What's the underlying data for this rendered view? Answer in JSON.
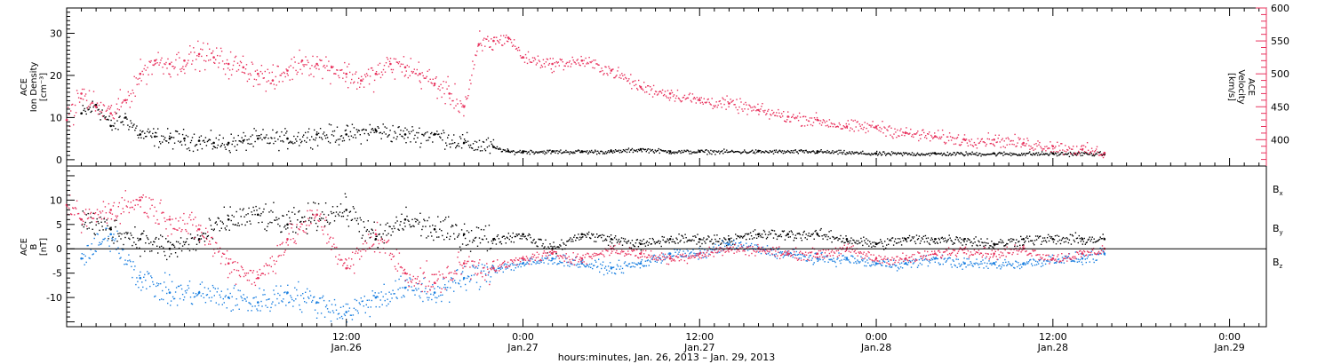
{
  "colors": {
    "density": "#000000",
    "velocity": "#e8335e",
    "bx": "#000000",
    "by": "#1a7fe0",
    "bz": "#e8335e",
    "frame": "#000000"
  },
  "xaxis": {
    "title": "hours:minutes, Jan. 26, 2013 – Jan. 29, 2013",
    "range_hours": [
      -7,
      74.5
    ],
    "data_end_hours": 63.5,
    "ticks": [
      {
        "hour": 12,
        "time": "12:00",
        "day": "Jan.26"
      },
      {
        "hour": 24,
        "time": "0:00",
        "day": "Jan.27"
      },
      {
        "hour": 36,
        "time": "12:00",
        "day": "Jan.27"
      },
      {
        "hour": 48,
        "time": "0:00",
        "day": "Jan.28"
      },
      {
        "hour": 60,
        "time": "12:00",
        "day": "Jan.28"
      },
      {
        "hour": 72,
        "time": "0:00",
        "day": "Jan.29"
      }
    ]
  },
  "chart_data": [
    {
      "type": "scatter",
      "panel": "plasma",
      "ylabel_left": [
        "ACE",
        "Ion Density",
        "[cm⁻³]"
      ],
      "ylabel_right": [
        "ACE",
        "Velocity",
        "[km/s]"
      ],
      "ylim_left": [
        -1.5,
        36
      ],
      "ylim_right": [
        360,
        600
      ],
      "yticks_left": [
        0,
        10,
        20,
        30
      ],
      "yticks_right": [
        400,
        450,
        500,
        550,
        600
      ],
      "series": [
        {
          "axis": "left",
          "x_hours": [
            -6,
            -5,
            -4,
            -3,
            -2,
            -1,
            0,
            1,
            2,
            3,
            4,
            5,
            6,
            8,
            10,
            12,
            14,
            16,
            18,
            20,
            22,
            23,
            24,
            26,
            28,
            30,
            32,
            34,
            36,
            40,
            44,
            48,
            52,
            56,
            60,
            63.5
          ],
          "values": [
            11,
            13,
            8,
            10,
            6,
            5.5,
            5,
            5,
            4.5,
            4,
            4,
            4.5,
            5,
            5,
            6,
            6,
            7,
            6,
            6,
            4,
            3,
            2,
            2,
            2,
            2,
            2,
            2.5,
            2,
            2,
            2,
            2,
            1.5,
            1.5,
            1.5,
            1.5,
            1.5
          ]
        },
        {
          "axis": "right",
          "x_hours": [
            -7,
            -6,
            -5,
            -4,
            -3,
            -2,
            -1,
            0,
            1,
            2,
            3,
            4,
            5,
            6,
            7,
            8,
            9,
            10,
            11,
            12,
            13,
            14,
            15,
            16,
            17,
            18,
            19,
            20,
            21,
            22,
            23,
            24,
            26,
            28,
            30,
            32,
            34,
            36,
            38,
            40,
            42,
            44,
            46,
            48,
            50,
            52,
            54,
            56,
            58,
            60,
            62,
            63.5
          ],
          "values": [
            430,
            470,
            450,
            440,
            460,
            500,
            520,
            515,
            520,
            530,
            525,
            515,
            510,
            500,
            490,
            505,
            520,
            515,
            510,
            500,
            490,
            500,
            515,
            510,
            500,
            485,
            470,
            450,
            545,
            550,
            555,
            525,
            515,
            520,
            505,
            480,
            470,
            460,
            455,
            445,
            435,
            430,
            420,
            420,
            410,
            405,
            400,
            400,
            395,
            390,
            385,
            380
          ]
        }
      ]
    },
    {
      "type": "scatter",
      "panel": "magnetic",
      "ylabel_left": [
        "ACE",
        "B",
        "[nT]"
      ],
      "ylim": [
        -16,
        17
      ],
      "yticks": [
        -10,
        -5,
        0,
        5,
        10
      ],
      "zero_line": true,
      "legend_position": "right",
      "series": [
        {
          "name": "Bx",
          "x_hours": [
            -6,
            -4,
            -2,
            0,
            2,
            4,
            6,
            8,
            10,
            12,
            14,
            16,
            18,
            20,
            22,
            24,
            26,
            28,
            30,
            32,
            34,
            36,
            38,
            40,
            42,
            44,
            46,
            48,
            50,
            52,
            54,
            56,
            58,
            60,
            62,
            63.5
          ],
          "values": [
            6,
            4,
            2,
            0,
            2,
            6,
            7,
            5,
            7,
            8,
            2,
            6,
            4,
            3,
            2,
            3,
            0,
            3,
            2,
            1,
            2,
            2,
            2,
            3,
            3,
            3,
            2,
            1,
            2,
            2,
            2,
            1,
            2,
            2,
            2,
            2
          ]
        },
        {
          "name": "By",
          "x_hours": [
            -6,
            -4,
            -2,
            0,
            2,
            4,
            6,
            8,
            10,
            12,
            14,
            16,
            18,
            20,
            22,
            24,
            26,
            28,
            30,
            32,
            34,
            36,
            38,
            40,
            42,
            44,
            46,
            48,
            50,
            52,
            54,
            56,
            58,
            60,
            62,
            63.5
          ],
          "values": [
            -2,
            3,
            -6,
            -9,
            -9,
            -10,
            -11,
            -9,
            -11,
            -13,
            -10,
            -8,
            -9,
            -6,
            -4,
            -3,
            -2,
            -3,
            -4,
            -3,
            -1,
            -1,
            1,
            0,
            -1,
            -2,
            -2,
            -3,
            -3,
            -2,
            -3,
            -3,
            -3,
            -2,
            -2,
            -1
          ]
        },
        {
          "name": "Bz",
          "x_hours": [
            -7,
            -6,
            -4,
            -2,
            0,
            2,
            4,
            6,
            8,
            10,
            12,
            14,
            16,
            18,
            20,
            22,
            24,
            26,
            28,
            30,
            32,
            34,
            36,
            38,
            40,
            42,
            44,
            46,
            48,
            50,
            52,
            54,
            56,
            58,
            60,
            62,
            63.5
          ],
          "values": [
            9,
            6,
            8,
            10,
            6,
            4,
            -3,
            -6,
            2,
            7,
            -4,
            3,
            -5,
            -7,
            -3,
            -4,
            -2,
            -1,
            -2,
            0,
            -1,
            -2,
            -1,
            0,
            0,
            -1,
            -1,
            0,
            -2,
            -2,
            -1,
            0,
            -1,
            0,
            -2,
            -1,
            0
          ]
        }
      ]
    }
  ]
}
